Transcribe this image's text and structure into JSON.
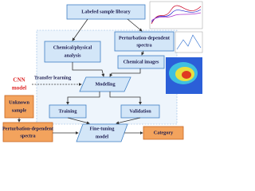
{
  "nodes": [
    {
      "label": "Labeled sample library"
    },
    {
      "label": "Chemical/physical",
      "label2": "analysis"
    },
    {
      "label": "Perturbation-dependent",
      "label2": "spectra"
    },
    {
      "label": "Chemical images"
    },
    {
      "label": "Modeling"
    },
    {
      "label": "Training"
    },
    {
      "label": "Validation"
    },
    {
      "label": "Unknown",
      "label2": "sample"
    },
    {
      "label": "Perturbation-dependent",
      "label2": "spectra"
    },
    {
      "label": "Fine-tuning",
      "label2": "model"
    },
    {
      "label": "Category"
    }
  ],
  "cnn": {
    "line1": "CNN",
    "line2": "model"
  },
  "edges": {
    "transfer": "Transfer learning"
  }
}
